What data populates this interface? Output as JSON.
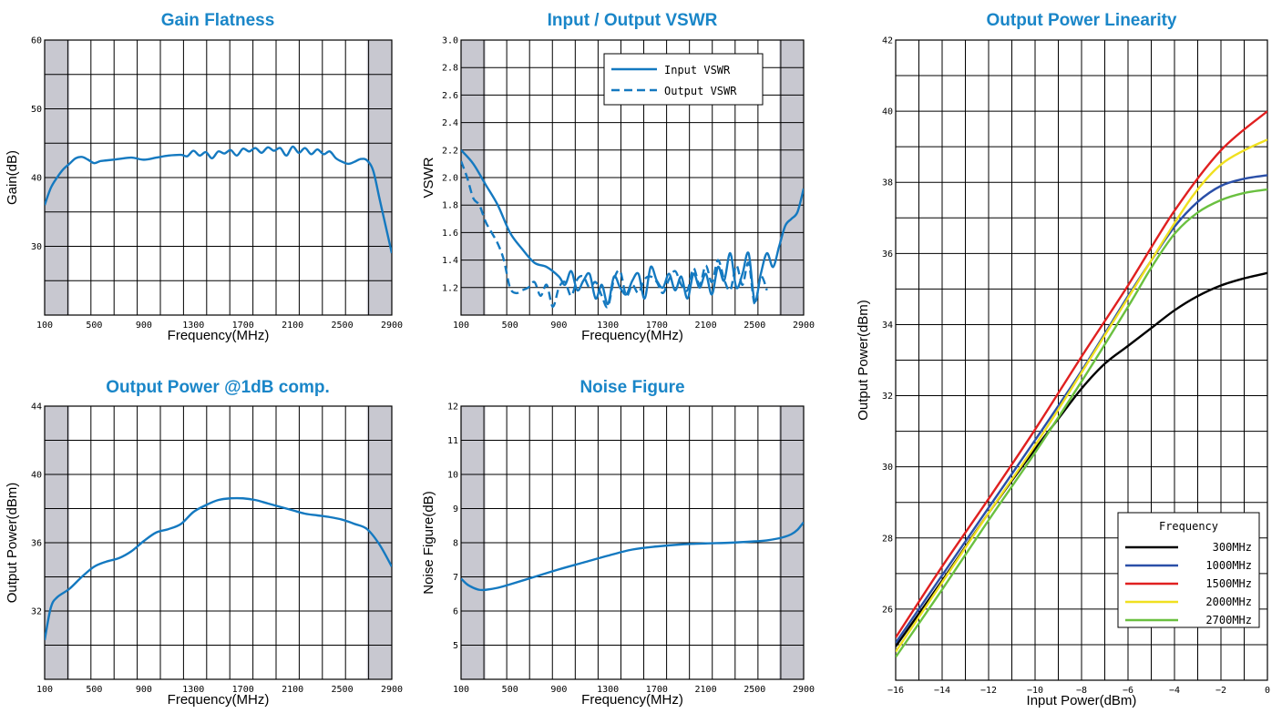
{
  "colors": {
    "curve": "#1479c0",
    "grid": "#000000",
    "shade": "#c8c8d0",
    "title": "#1a86c8"
  },
  "chart_data": [
    {
      "id": "gain",
      "type": "line",
      "title": "Gain Flatness",
      "xlabel": "Frequency(MHz)",
      "ylabel": "Gain(dB)",
      "xlim": [
        100,
        2900
      ],
      "ylim": [
        20,
        60
      ],
      "xticks": [
        100,
        500,
        900,
        1300,
        1700,
        2100,
        2500,
        2900
      ],
      "xtick_labels": [
        "100",
        "500",
        "900",
        "1300",
        "1700",
        "2100",
        "2500",
        "2900"
      ],
      "yticks": [
        30,
        40,
        50,
        60
      ],
      "ytick_labels": [
        "30",
        "40",
        "50",
        "60"
      ],
      "shaded_bands": [
        [
          100,
          300
        ],
        [
          2700,
          2900
        ]
      ],
      "grid": true,
      "series": [
        {
          "x": [
            100,
            150,
            200,
            250,
            300,
            350,
            400,
            450,
            500,
            550,
            600,
            700,
            800,
            900,
            1000,
            1100,
            1200,
            1250,
            1300,
            1350,
            1400,
            1450,
            1500,
            1550,
            1600,
            1650,
            1700,
            1750,
            1800,
            1850,
            1900,
            1950,
            2000,
            2050,
            2100,
            2150,
            2200,
            2250,
            2300,
            2350,
            2400,
            2450,
            2500,
            2550,
            2600,
            2650,
            2700,
            2750,
            2800,
            2850,
            2900
          ],
          "y": [
            36,
            38.5,
            40,
            41.2,
            42,
            42.8,
            43,
            42.6,
            42.1,
            42.4,
            42.5,
            42.7,
            42.9,
            42.6,
            42.9,
            43.2,
            43.3,
            43.1,
            43.9,
            43.2,
            43.7,
            42.8,
            43.8,
            43.5,
            44,
            43.2,
            44.2,
            43.8,
            44.3,
            43.6,
            44.4,
            43.9,
            44.3,
            43.2,
            44.5,
            43.6,
            44.3,
            43.4,
            44.1,
            43.4,
            43.8,
            42.8,
            42.3,
            42,
            42.3,
            42.7,
            42.5,
            41,
            37,
            33,
            29
          ]
        }
      ]
    },
    {
      "id": "vswr",
      "type": "line",
      "title": "Input / Output VSWR",
      "xlabel": "Frequency(MHz)",
      "ylabel": "VSWR",
      "xlim": [
        100,
        2900
      ],
      "ylim": [
        1.0,
        3.0
      ],
      "xticks": [
        100,
        500,
        900,
        1300,
        1700,
        2100,
        2500,
        2900
      ],
      "xtick_labels": [
        "100",
        "500",
        "900",
        "1300",
        "1700",
        "2100",
        "2500",
        "2900"
      ],
      "yticks": [
        1.2,
        1.4,
        1.6,
        1.8,
        2.0,
        2.2,
        2.4,
        2.6,
        2.8,
        3.0
      ],
      "ytick_labels": [
        "1.2",
        "1.4",
        "1.6",
        "1.8",
        "2.0",
        "2.2",
        "2.4",
        "2.6",
        "2.8",
        "3.0"
      ],
      "shaded_bands": [
        [
          100,
          300
        ],
        [
          2700,
          2900
        ]
      ],
      "grid": true,
      "legend": {
        "position": "top-right"
      },
      "series": [
        {
          "name": "Input VSWR",
          "dash": false,
          "x": [
            100,
            200,
            300,
            400,
            500,
            600,
            700,
            800,
            900,
            950,
            1000,
            1050,
            1100,
            1150,
            1200,
            1250,
            1300,
            1350,
            1400,
            1450,
            1500,
            1550,
            1600,
            1650,
            1700,
            1750,
            1800,
            1850,
            1900,
            1950,
            2000,
            2050,
            2100,
            2150,
            2200,
            2250,
            2300,
            2350,
            2400,
            2450,
            2500,
            2550,
            2600,
            2650,
            2700,
            2750,
            2800,
            2850,
            2900
          ],
          "y": [
            2.2,
            2.1,
            1.95,
            1.8,
            1.6,
            1.48,
            1.38,
            1.35,
            1.28,
            1.22,
            1.32,
            1.18,
            1.25,
            1.3,
            1.12,
            1.22,
            1.08,
            1.28,
            1.2,
            1.15,
            1.25,
            1.3,
            1.12,
            1.35,
            1.25,
            1.2,
            1.3,
            1.18,
            1.28,
            1.12,
            1.3,
            1.2,
            1.3,
            1.15,
            1.35,
            1.25,
            1.45,
            1.2,
            1.3,
            1.45,
            1.1,
            1.3,
            1.45,
            1.35,
            1.5,
            1.65,
            1.7,
            1.75,
            1.92
          ]
        },
        {
          "name": "Output VSWR",
          "dash": true,
          "x": [
            100,
            150,
            200,
            250,
            300,
            350,
            400,
            450,
            500,
            550,
            600,
            650,
            700,
            750,
            800,
            850,
            900,
            950,
            1000,
            1050,
            1100,
            1150,
            1200,
            1250,
            1300,
            1350,
            1400,
            1450,
            1500,
            1550,
            1600,
            1650,
            1700,
            1750,
            1800,
            1850,
            1900,
            1950,
            2000,
            2050,
            2100,
            2150,
            2200,
            2250,
            2300,
            2350,
            2400,
            2450,
            2500,
            2550,
            2600
          ],
          "y": [
            2.12,
            2.0,
            1.85,
            1.8,
            1.68,
            1.6,
            1.52,
            1.4,
            1.2,
            1.16,
            1.18,
            1.2,
            1.24,
            1.14,
            1.22,
            1.06,
            1.2,
            1.24,
            1.14,
            1.26,
            1.28,
            1.2,
            1.24,
            1.14,
            1.06,
            1.26,
            1.32,
            1.14,
            1.22,
            1.16,
            1.26,
            1.28,
            1.24,
            1.16,
            1.26,
            1.32,
            1.22,
            1.18,
            1.34,
            1.22,
            1.36,
            1.24,
            1.4,
            1.26,
            1.18,
            1.36,
            1.22,
            1.38,
            1.08,
            1.28,
            1.18
          ]
        }
      ]
    },
    {
      "id": "p1db",
      "type": "line",
      "title": "Output Power @1dB comp.",
      "xlabel": "Frequency(MHz)",
      "ylabel": "Output Power(dBm)",
      "xlim": [
        100,
        2900
      ],
      "ylim": [
        28,
        44
      ],
      "xticks": [
        100,
        500,
        900,
        1300,
        1700,
        2100,
        2500,
        2900
      ],
      "xtick_labels": [
        "100",
        "500",
        "900",
        "1300",
        "1700",
        "2100",
        "2500",
        "2900"
      ],
      "yticks": [
        32,
        36,
        40,
        44
      ],
      "ytick_labels": [
        "32",
        "36",
        "40",
        "44"
      ],
      "shaded_bands": [
        [
          100,
          300
        ],
        [
          2700,
          2900
        ]
      ],
      "grid": true,
      "series": [
        {
          "x": [
            100,
            150,
            200,
            300,
            400,
            500,
            600,
            700,
            800,
            900,
            1000,
            1100,
            1200,
            1300,
            1400,
            1500,
            1600,
            1700,
            1800,
            1900,
            2000,
            2100,
            2200,
            2300,
            2400,
            2500,
            2600,
            2700,
            2800,
            2900
          ],
          "y": [
            30.3,
            32.2,
            32.8,
            33.3,
            34,
            34.6,
            34.9,
            35.1,
            35.5,
            36.1,
            36.6,
            36.8,
            37.1,
            37.8,
            38.2,
            38.5,
            38.6,
            38.6,
            38.5,
            38.3,
            38.1,
            37.9,
            37.7,
            37.6,
            37.5,
            37.35,
            37.1,
            36.8,
            35.9,
            34.6
          ]
        }
      ]
    },
    {
      "id": "nf",
      "type": "line",
      "title": "Noise Figure",
      "xlabel": "Frequency(MHz)",
      "ylabel": "Noise Figure(dB)",
      "xlim": [
        100,
        2900
      ],
      "ylim": [
        4,
        12
      ],
      "xticks": [
        100,
        500,
        900,
        1300,
        1700,
        2100,
        2500,
        2900
      ],
      "xtick_labels": [
        "100",
        "500",
        "900",
        "1300",
        "1700",
        "2100",
        "2500",
        "2900"
      ],
      "yticks": [
        5,
        6,
        7,
        8,
        9,
        10,
        11,
        12
      ],
      "ytick_labels": [
        "5",
        "6",
        "7",
        "8",
        "9",
        "10",
        "11",
        "12"
      ],
      "shaded_bands": [
        [
          100,
          300
        ],
        [
          2700,
          2900
        ]
      ],
      "grid": true,
      "series": [
        {
          "x": [
            100,
            150,
            200,
            250,
            300,
            400,
            500,
            700,
            900,
            1100,
            1300,
            1500,
            1700,
            1900,
            2100,
            2300,
            2500,
            2600,
            2700,
            2750,
            2800,
            2850,
            2900
          ],
          "y": [
            6.95,
            6.78,
            6.68,
            6.62,
            6.62,
            6.68,
            6.78,
            7.0,
            7.22,
            7.42,
            7.62,
            7.8,
            7.89,
            7.95,
            7.98,
            8.0,
            8.04,
            8.07,
            8.13,
            8.18,
            8.25,
            8.38,
            8.6
          ]
        }
      ]
    },
    {
      "id": "linearity",
      "type": "line",
      "title": "Output Power Linearity",
      "xlabel": "Input Power(dBm)",
      "ylabel": "Output Power(dBm)",
      "xlim": [
        -16,
        0
      ],
      "ylim": [
        24,
        42
      ],
      "xticks": [
        -16,
        -14,
        -12,
        -10,
        -8,
        -6,
        -4,
        -2,
        0
      ],
      "xtick_labels": [
        "−16",
        "−14",
        "−12",
        "−10",
        "−8",
        "−6",
        "−4",
        "−2",
        "0"
      ],
      "yticks": [
        26,
        28,
        30,
        32,
        34,
        36,
        38,
        40,
        42
      ],
      "ytick_labels": [
        "26",
        "28",
        "30",
        "32",
        "34",
        "36",
        "38",
        "40",
        "42"
      ],
      "grid": true,
      "legend": {
        "title": "Frequency",
        "position": "bottom-right"
      },
      "series": [
        {
          "name": "300MHz",
          "color": "#000000",
          "x": [
            -16,
            -14,
            -12,
            -10,
            -9,
            -8,
            -7,
            -6,
            -5,
            -4,
            -3,
            -2,
            -1,
            0
          ],
          "y": [
            24.95,
            26.8,
            28.7,
            30.5,
            31.35,
            32.2,
            32.9,
            33.4,
            33.9,
            34.4,
            34.8,
            35.1,
            35.3,
            35.45
          ]
        },
        {
          "name": "1000MHz",
          "color": "#2a4fa8",
          "x": [
            -16,
            -14,
            -12,
            -10,
            -8,
            -6,
            -5,
            -4,
            -3,
            -2,
            -1,
            0
          ],
          "y": [
            25.05,
            26.95,
            28.85,
            30.75,
            32.7,
            34.8,
            35.8,
            36.75,
            37.45,
            37.9,
            38.1,
            38.2
          ]
        },
        {
          "name": "1500MHz",
          "color": "#e02020",
          "x": [
            -16,
            -14,
            -12,
            -10,
            -8,
            -6,
            -4,
            -2,
            0
          ],
          "y": [
            25.2,
            27.2,
            29.1,
            31.05,
            33.1,
            35.1,
            37.2,
            38.9,
            40.0
          ]
        },
        {
          "name": "2000MHz",
          "color": "#f0e020",
          "x": [
            -16,
            -14,
            -12,
            -10,
            -8,
            -6,
            -4,
            -3,
            -2,
            -1,
            0
          ],
          "y": [
            24.8,
            26.75,
            28.7,
            30.6,
            32.65,
            34.75,
            36.85,
            37.8,
            38.5,
            38.9,
            39.2
          ]
        },
        {
          "name": "2700MHz",
          "color": "#6ac040",
          "x": [
            -16,
            -14,
            -12,
            -10,
            -8,
            -6,
            -5,
            -4,
            -3,
            -2,
            -1,
            0
          ],
          "y": [
            24.65,
            26.55,
            28.5,
            30.4,
            32.4,
            34.5,
            35.6,
            36.55,
            37.15,
            37.5,
            37.7,
            37.8
          ]
        }
      ]
    }
  ]
}
